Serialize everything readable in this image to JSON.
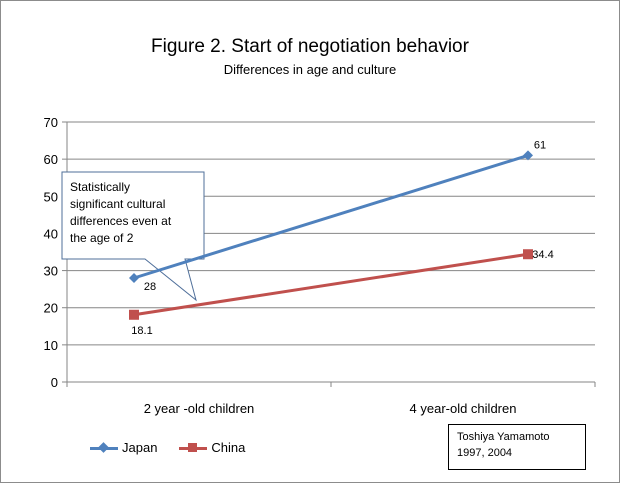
{
  "chart_data": {
    "type": "line",
    "title": "Figure 2. Start of negotiation behavior",
    "subtitle": "Differences in age and culture",
    "categories": [
      "2 year -old children",
      "4 year-old children"
    ],
    "ylim": [
      0,
      70
    ],
    "yticks": [
      0,
      10,
      20,
      30,
      40,
      50,
      60,
      70
    ],
    "grid": true,
    "legend_position": "bottom-left",
    "series": [
      {
        "name": "Japan",
        "values": [
          28,
          61
        ],
        "color": "#4f81bd",
        "marker": "diamond",
        "labels": [
          "28",
          "61"
        ]
      },
      {
        "name": "China",
        "values": [
          18.1,
          34.4
        ],
        "color": "#c0504d",
        "marker": "square",
        "labels": [
          "18.1",
          "34.4"
        ]
      }
    ],
    "annotation": {
      "lines": [
        "Statistically",
        "significant cultural",
        "differences even at",
        "the age of 2"
      ]
    }
  },
  "credit": {
    "line1": "Toshiya Yamamoto",
    "line2": "1997, 2004"
  }
}
